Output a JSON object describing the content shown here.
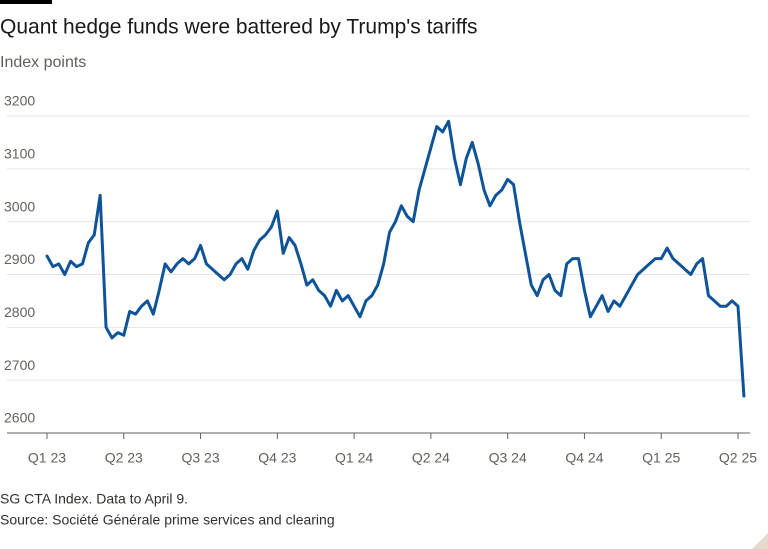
{
  "chart_data": {
    "type": "line",
    "title": "Quant hedge funds were battered by Trump's tariffs",
    "subtitle": "Index points",
    "notes": [
      "SG CTA Index. Data to April 9.",
      "Source: Société Générale prime services and clearing"
    ],
    "categories": [
      "Q1 23",
      null,
      null,
      null,
      null,
      null,
      null,
      null,
      null,
      null,
      null,
      null,
      null,
      "Q2 23",
      null,
      null,
      null,
      null,
      null,
      null,
      null,
      null,
      null,
      null,
      null,
      null,
      "Q3 23",
      null,
      null,
      null,
      null,
      null,
      null,
      null,
      null,
      null,
      null,
      null,
      null,
      "Q4 23",
      null,
      null,
      null,
      null,
      null,
      null,
      null,
      null,
      null,
      null,
      null,
      null,
      "Q1 24",
      null,
      null,
      null,
      null,
      null,
      null,
      null,
      null,
      null,
      null,
      null,
      null,
      "Q2 24",
      null,
      null,
      null,
      null,
      null,
      null,
      null,
      null,
      null,
      null,
      null,
      null,
      "Q3 24",
      null,
      null,
      null,
      null,
      null,
      null,
      null,
      null,
      null,
      null,
      null,
      null,
      "Q4 24",
      null,
      null,
      null,
      null,
      null,
      null,
      null,
      null,
      null,
      null,
      null,
      null,
      "Q1 25",
      null,
      null,
      null,
      null,
      null,
      null,
      null,
      null,
      null,
      null,
      null,
      null,
      "Q2 25",
      null
    ],
    "values": [
      2935,
      2915,
      2920,
      2900,
      2925,
      2915,
      2920,
      2960,
      2975,
      3050,
      2800,
      2780,
      2790,
      2785,
      2830,
      2825,
      2840,
      2850,
      2825,
      2870,
      2920,
      2905,
      2920,
      2930,
      2920,
      2930,
      2955,
      2920,
      2910,
      2900,
      2890,
      2900,
      2920,
      2930,
      2910,
      2945,
      2965,
      2975,
      2990,
      3020,
      2940,
      2970,
      2955,
      2920,
      2880,
      2890,
      2870,
      2860,
      2840,
      2870,
      2850,
      2860,
      2840,
      2820,
      2850,
      2860,
      2880,
      2920,
      2980,
      3000,
      3030,
      3010,
      3000,
      3060,
      3100,
      3140,
      3180,
      3170,
      3190,
      3120,
      3070,
      3120,
      3150,
      3110,
      3060,
      3030,
      3050,
      3060,
      3080,
      3070,
      3000,
      2940,
      2880,
      2860,
      2890,
      2900,
      2870,
      2860,
      2920,
      2930,
      2930,
      2870,
      2820,
      2840,
      2860,
      2830,
      2850,
      2840,
      2860,
      2880,
      2900,
      2910,
      2920,
      2930,
      2930,
      2950,
      2930,
      2920,
      2910,
      2900,
      2920,
      2930,
      2860,
      2850,
      2840,
      2840,
      2850,
      2840,
      2670
    ],
    "color": "#0f5499",
    "ylim": [
      2600,
      3200
    ],
    "yticks": [
      2600,
      2700,
      2800,
      2900,
      3000,
      3100,
      3200
    ],
    "grid": true
  }
}
